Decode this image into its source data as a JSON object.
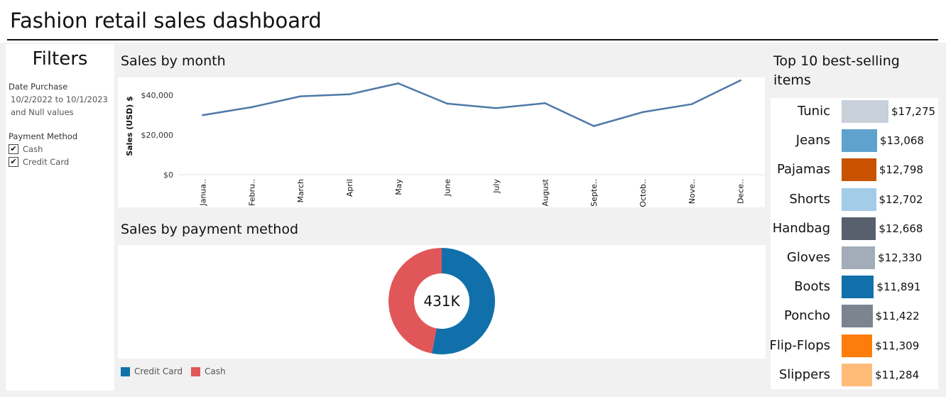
{
  "dashboard": {
    "title": "Fashion retail sales dashboard"
  },
  "filters": {
    "title": "Filters",
    "date_label": "Date Purchase",
    "date_value_line1": "10/2/2022 to 10/1/2023",
    "date_value_line2": "and Null values",
    "payment_label": "Payment Method",
    "options": [
      {
        "label": "Cash",
        "checked": true
      },
      {
        "label": "Credit Card",
        "checked": true
      }
    ]
  },
  "sales_by_month": {
    "title": "Sales by month"
  },
  "sales_by_payment": {
    "title": "Sales by payment method",
    "center_label": "431K"
  },
  "top_items": {
    "title_line1": "Top 10 best-selling",
    "title_line2": "items"
  },
  "chart_data": [
    {
      "type": "line",
      "title": "Sales by month",
      "ylabel": "Sales (USD) $",
      "xlabel": "",
      "ylim": [
        0,
        49000
      ],
      "yticks": [
        0,
        20000,
        40000
      ],
      "ytick_labels": [
        "$0",
        "$20,000",
        "$40,000"
      ],
      "categories": [
        "Janua..",
        "Febru..",
        "March",
        "April",
        "May",
        "June",
        "July",
        "August",
        "Septe..",
        "Octob..",
        "Nove..",
        "Dece.."
      ],
      "series": [
        {
          "values": [
            30000,
            34000,
            39500,
            40500,
            46000,
            35800,
            33500,
            36000,
            24500,
            31500,
            35500,
            47500
          ],
          "color": "#4e79a7"
        }
      ],
      "grid": false
    },
    {
      "type": "pie",
      "title": "Sales by payment method",
      "donut": true,
      "center_label": "431K",
      "slices": [
        {
          "label": "Credit Card",
          "value": 0.53,
          "color": "#1170aa"
        },
        {
          "label": "Cash",
          "value": 0.47,
          "color": "#e15759"
        }
      ],
      "legend": "bottom-left"
    },
    {
      "type": "bar",
      "orientation": "horizontal",
      "title": "Top 10 best-selling items",
      "categories": [
        "Tunic",
        "Jeans",
        "Pajamas",
        "Shorts",
        "Handbag",
        "Gloves",
        "Boots",
        "Poncho",
        "Flip-Flops",
        "Slippers"
      ],
      "values": [
        17275,
        13068,
        12798,
        12702,
        12668,
        12330,
        11891,
        11422,
        11309,
        11284
      ],
      "value_labels": [
        "$17,275",
        "$13,068",
        "$12,798",
        "$12,702",
        "$12,668",
        "$12,330",
        "$11,891",
        "$11,422",
        "$11,309",
        "$11,284"
      ],
      "colors": [
        "#c8d0d9",
        "#5fa2ce",
        "#c85200",
        "#a3cce9",
        "#57606c",
        "#a3acb9",
        "#1170aa",
        "#7b848f",
        "#fc7d0b",
        "#ffbc79"
      ]
    }
  ]
}
